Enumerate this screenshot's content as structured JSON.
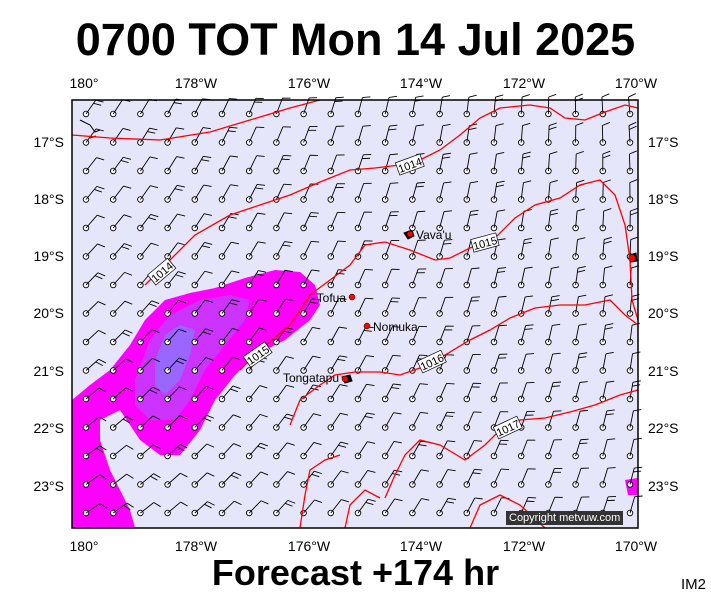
{
  "title": "0700 TOT Mon 14 Jul 2025",
  "forecast": "Forecast +174 hr",
  "panel_id": "IM2",
  "copyright": "Copyright metvuw.com",
  "lon_ticks": [
    "180°",
    "178°W",
    "176°W",
    "174°W",
    "172°W",
    "170°W"
  ],
  "lat_ticks": [
    "17°S",
    "18°S",
    "19°S",
    "20°S",
    "21°S",
    "22°S",
    "23°S"
  ],
  "places": [
    "Vava'u",
    "Tofua",
    "Nomuka",
    "Tongatapu"
  ],
  "isobars": [
    "1014",
    "1015",
    "1015",
    "1016",
    "1017",
    "1014"
  ],
  "colors": {
    "ocean": "#e6e6fa",
    "isobar": "#ff0000",
    "rain_light": "#ff00ff",
    "rain_mid": "#cc33ff",
    "rain_heavy": "#9966ff",
    "coast": "#000000"
  }
}
